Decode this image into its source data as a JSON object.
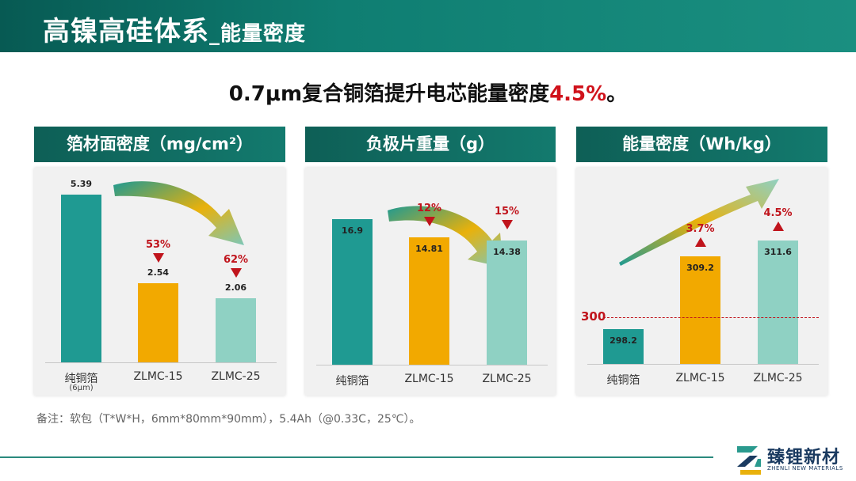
{
  "header": {
    "title_main": "高镍高硅体系",
    "title_sub": "_能量密度"
  },
  "headline": {
    "text": "0.7μm复合铜箔提升电芯能量密度",
    "highlight": "4.5%",
    "tail": "。"
  },
  "footnote": "备注：软包（T*W*H，6mm*80mm*90mm），5.4Ah（@0.33C，25℃）。",
  "logo": {
    "cn": "臻锂新材",
    "en": "ZHENLI NEW MATERIALS"
  },
  "colors": {
    "teal": "#1f9a92",
    "orange": "#f2a900",
    "mint": "#8fd1c3",
    "red": "#c0141c"
  },
  "chart_data": [
    {
      "type": "bar",
      "title": "箔材面密度（mg/cm²）",
      "categories": [
        "纯铜箔",
        "ZLMC-15",
        "ZLMC-25"
      ],
      "category_sub": [
        "(6μm)",
        "",
        ""
      ],
      "values": [
        5.39,
        2.54,
        2.06
      ],
      "value_labels": [
        "5.39",
        "2.54",
        "2.06"
      ],
      "changes": [
        "",
        "53%",
        "62%"
      ],
      "change_dir": [
        "",
        "down",
        "down"
      ]
    },
    {
      "type": "bar",
      "title": "负极片重量（g）",
      "categories": [
        "纯铜箔",
        "ZLMC-15",
        "ZLMC-25"
      ],
      "values": [
        16.9,
        14.81,
        14.38
      ],
      "value_labels": [
        "16.9",
        "14.81",
        "14.38"
      ],
      "changes": [
        "",
        "12%",
        "15%"
      ],
      "change_dir": [
        "",
        "down",
        "down"
      ]
    },
    {
      "type": "bar",
      "title": "能量密度（Wh/kg）",
      "categories": [
        "纯铜箔",
        "ZLMC-15",
        "ZLMC-25"
      ],
      "values": [
        298.2,
        309.2,
        311.6
      ],
      "value_labels": [
        "298.2",
        "309.2",
        "311.6"
      ],
      "changes": [
        "",
        "3.7%",
        "4.5%"
      ],
      "change_dir": [
        "",
        "up",
        "up"
      ],
      "reference_line": {
        "value": 300,
        "label": "300"
      }
    }
  ]
}
